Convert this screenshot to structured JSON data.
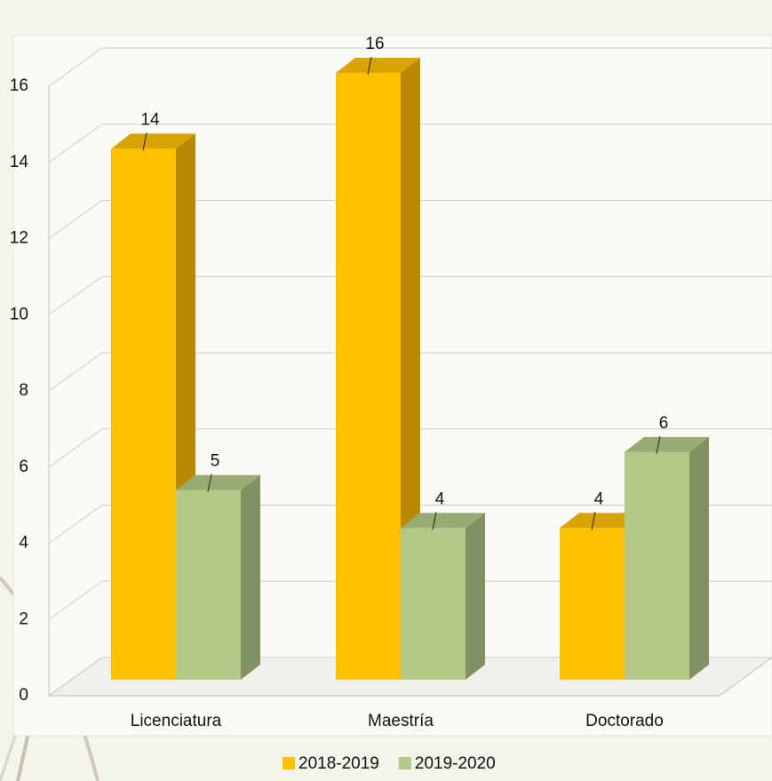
{
  "chart_data": {
    "type": "bar3d",
    "categories": [
      "Licenciatura",
      "Maestría",
      "Doctorado"
    ],
    "series": [
      {
        "name": "2018-2019",
        "color": "#FFC000",
        "values": [
          14,
          16,
          4
        ]
      },
      {
        "name": "2019-2020",
        "color": "#B3C987",
        "values": [
          5,
          4,
          6
        ]
      }
    ],
    "ylim": [
      0,
      16
    ],
    "yticks": [
      0,
      2,
      4,
      6,
      8,
      10,
      12,
      14,
      16
    ],
    "grid": true,
    "legend": "bottom"
  }
}
